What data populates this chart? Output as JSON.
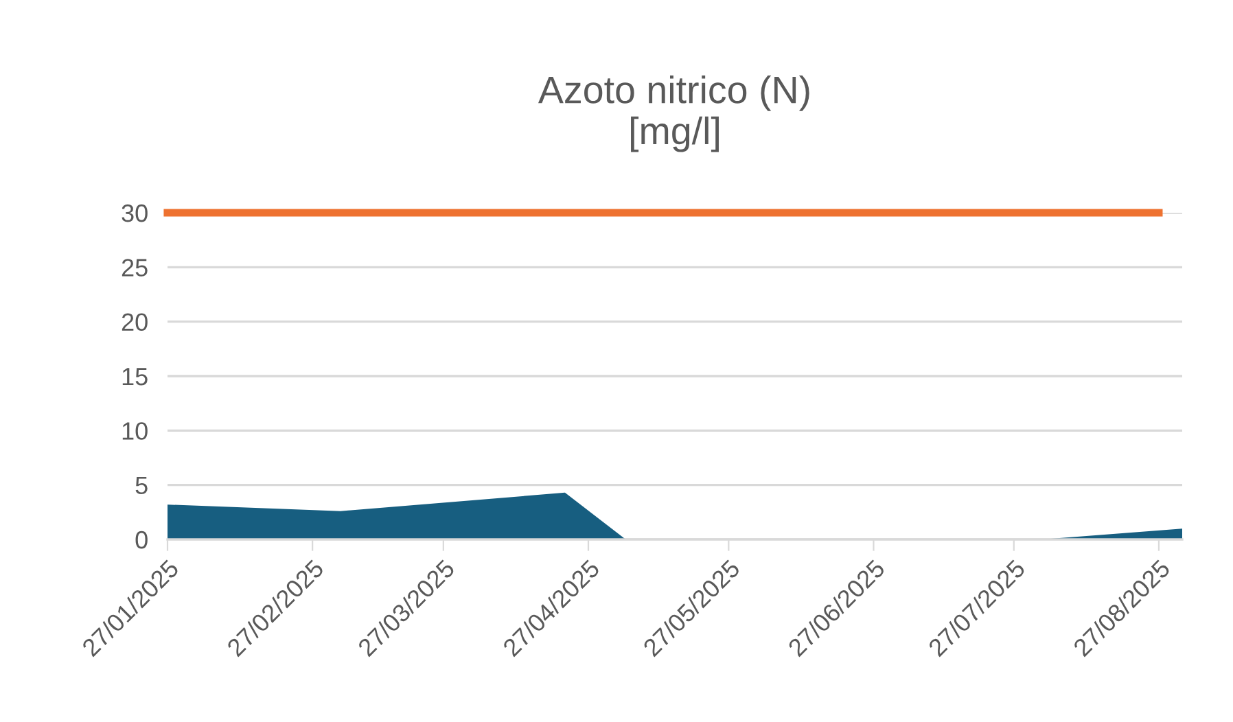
{
  "chart_data": {
    "type": "area",
    "title": "Azoto nitrico (N)\n[mg/l]",
    "series": [
      {
        "color": "#175e80",
        "x": [
          "2025-01-27",
          "2025-03-05",
          "2025-04-22",
          "2025-05-05",
          "2025-08-02",
          "2025-09-01"
        ],
        "values": [
          3.2,
          2.6,
          4.3,
          0,
          0,
          1.0
        ]
      },
      {
        "type": "line",
        "color": "#ee7230",
        "x": [
          "2025-01-27",
          "2025-08-27"
        ],
        "values": [
          30,
          30
        ]
      }
    ],
    "xlim": [
      "2025-01-27",
      "2025-09-01"
    ],
    "xticks": [
      {
        "value": "2025-01-27",
        "label": "27/01/2025"
      },
      {
        "value": "2025-02-27",
        "label": "27/02/2025"
      },
      {
        "value": "2025-03-27",
        "label": "27/03/2025"
      },
      {
        "value": "2025-04-27",
        "label": "27/04/2025"
      },
      {
        "value": "2025-05-27",
        "label": "27/05/2025"
      },
      {
        "value": "2025-06-27",
        "label": "27/06/2025"
      },
      {
        "value": "2025-07-27",
        "label": "27/07/2025"
      },
      {
        "value": "2025-08-27",
        "label": "27/08/2025"
      }
    ],
    "ylim": [
      0,
      30
    ],
    "yticks": [
      0,
      5,
      10,
      15,
      20,
      25,
      30
    ],
    "grid": "y"
  }
}
